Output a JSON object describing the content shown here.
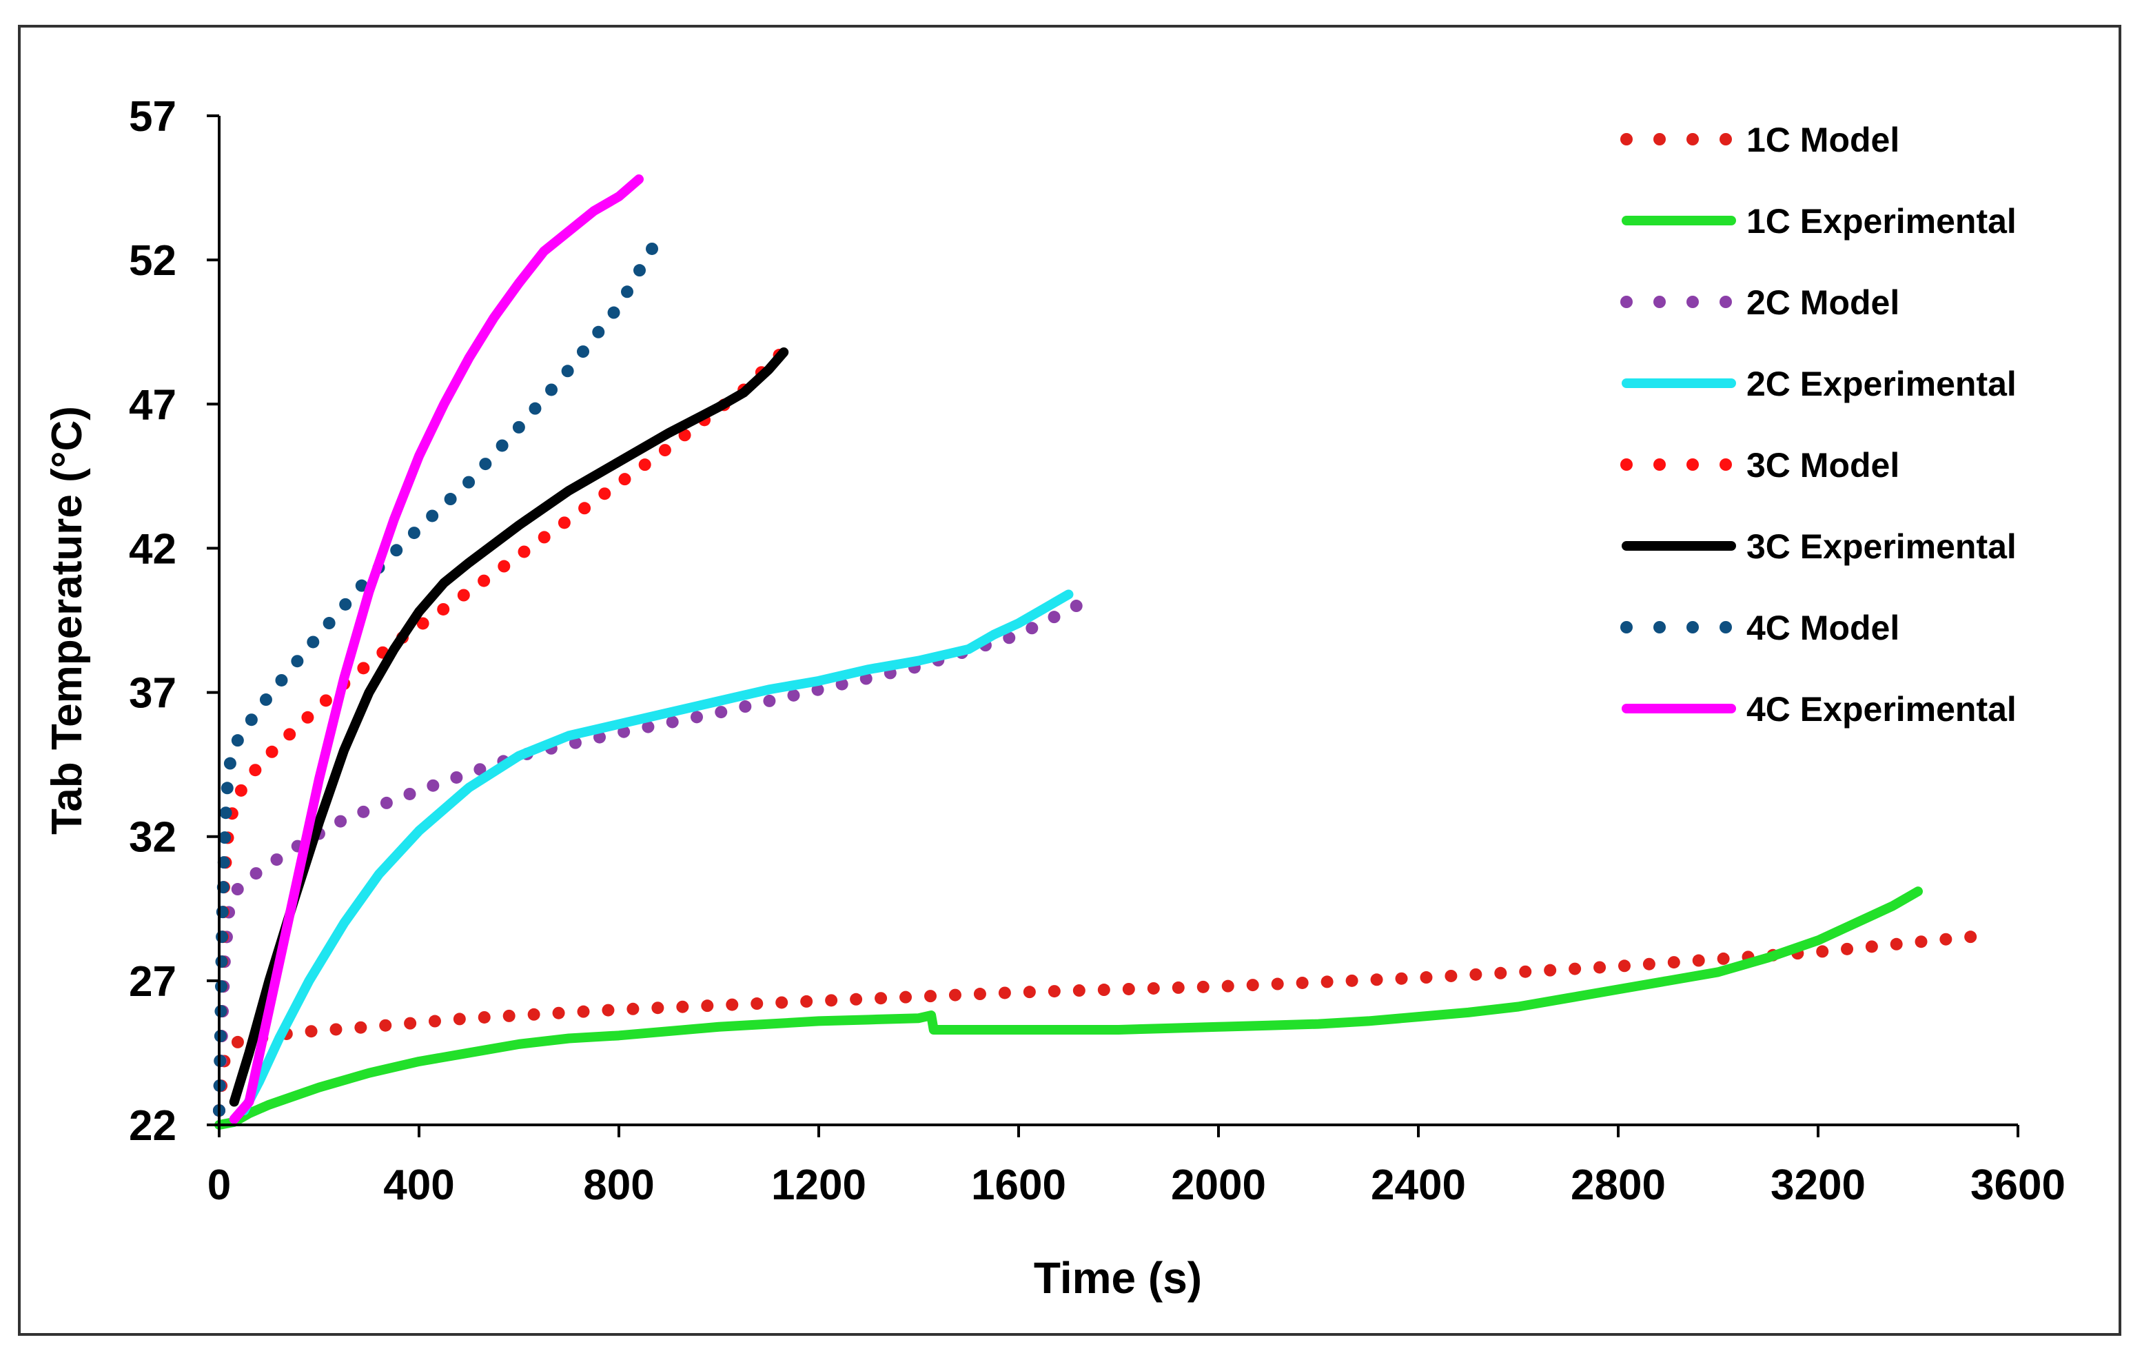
{
  "chart_data": {
    "type": "line",
    "title": "",
    "xlabel": "Time (s)",
    "ylabel": "Tab Temperature (°C)",
    "xlim": [
      0,
      3600
    ],
    "ylim": [
      22,
      57
    ],
    "xticks": [
      0,
      400,
      800,
      1200,
      1600,
      2000,
      2400,
      2800,
      3200,
      3600
    ],
    "yticks": [
      22,
      27,
      32,
      37,
      42,
      47,
      52,
      57
    ],
    "grid": false,
    "legend_position": "top-right",
    "series": [
      {
        "name": "1C Model",
        "style": "dotted",
        "color": "#e0201a",
        "x": [
          0,
          5,
          10,
          20,
          40,
          80,
          150,
          300,
          500,
          800,
          1200,
          1600,
          2000,
          2400,
          2800,
          3200,
          3550
        ],
        "y": [
          22.5,
          23.5,
          24.2,
          24.7,
          24.9,
          25.0,
          25.2,
          25.4,
          25.7,
          26.0,
          26.3,
          26.6,
          26.8,
          27.1,
          27.5,
          28.0,
          28.6
        ]
      },
      {
        "name": "1C Experimental",
        "style": "solid",
        "color": "#22e02a",
        "x": [
          0,
          30,
          60,
          100,
          200,
          300,
          400,
          500,
          600,
          700,
          800,
          900,
          1000,
          1100,
          1200,
          1300,
          1400,
          1425,
          1430,
          1500,
          1600,
          1700,
          1800,
          1900,
          2000,
          2100,
          2200,
          2300,
          2400,
          2500,
          2600,
          2700,
          2800,
          2900,
          3000,
          3100,
          3200,
          3250,
          3300,
          3350,
          3400
        ],
        "y": [
          22.0,
          22.1,
          22.4,
          22.7,
          23.3,
          23.8,
          24.2,
          24.5,
          24.8,
          25.0,
          25.1,
          25.25,
          25.4,
          25.5,
          25.6,
          25.65,
          25.7,
          25.8,
          25.3,
          25.3,
          25.3,
          25.3,
          25.3,
          25.35,
          25.4,
          25.45,
          25.5,
          25.6,
          25.75,
          25.9,
          26.1,
          26.4,
          26.7,
          27.0,
          27.3,
          27.8,
          28.4,
          28.8,
          29.2,
          29.6,
          30.1
        ]
      },
      {
        "name": "2C Model",
        "style": "dotted",
        "color": "#8b3fa8",
        "x": [
          0,
          5,
          10,
          20,
          40,
          80,
          150,
          250,
          400,
          600,
          800,
          1000,
          1200,
          1400,
          1600,
          1750
        ],
        "y": [
          22.5,
          25.0,
          27.5,
          29.5,
          30.3,
          30.8,
          31.6,
          32.6,
          33.6,
          34.8,
          35.6,
          36.3,
          37.1,
          37.9,
          39.0,
          40.3
        ]
      },
      {
        "name": "2C Experimental",
        "style": "solid",
        "color": "#1fe5f0",
        "x": [
          50,
          80,
          120,
          180,
          250,
          320,
          400,
          500,
          600,
          700,
          800,
          900,
          1000,
          1100,
          1200,
          1300,
          1400,
          1500,
          1550,
          1600,
          1650,
          1700
        ],
        "y": [
          22.5,
          23.5,
          25.0,
          27.0,
          29.0,
          30.7,
          32.2,
          33.7,
          34.8,
          35.5,
          35.9,
          36.3,
          36.7,
          37.1,
          37.4,
          37.8,
          38.1,
          38.5,
          39.0,
          39.4,
          39.9,
          40.4
        ]
      },
      {
        "name": "3C Model",
        "style": "dotted",
        "color": "#ff1010",
        "x": [
          0,
          5,
          10,
          20,
          40,
          80,
          150,
          250,
          350,
          500,
          700,
          900,
          1050,
          1150
        ],
        "y": [
          22.5,
          27.0,
          30.5,
          32.5,
          33.5,
          34.5,
          35.7,
          37.3,
          38.7,
          40.5,
          43.0,
          45.5,
          47.5,
          49.2
        ]
      },
      {
        "name": "3C Experimental",
        "style": "solid",
        "color": "#000000",
        "x": [
          30,
          60,
          100,
          150,
          200,
          250,
          300,
          350,
          400,
          450,
          500,
          600,
          700,
          800,
          900,
          1000,
          1050,
          1100,
          1130
        ],
        "y": [
          22.8,
          24.5,
          27.0,
          29.8,
          32.5,
          35.0,
          37.0,
          38.5,
          39.8,
          40.8,
          41.5,
          42.8,
          44.0,
          45.0,
          46.0,
          46.9,
          47.4,
          48.2,
          48.8
        ]
      },
      {
        "name": "4C Model",
        "style": "dotted",
        "color": "#0e4f80",
        "x": [
          0,
          3,
          6,
          10,
          15,
          25,
          50,
          100,
          200,
          300,
          400,
          500,
          600,
          700,
          800,
          880
        ],
        "y": [
          22.5,
          25.5,
          29.0,
          31.5,
          33.5,
          35.0,
          35.7,
          36.9,
          39.0,
          41.0,
          42.7,
          44.3,
          46.2,
          48.2,
          50.4,
          52.8
        ]
      },
      {
        "name": "4C Experimental",
        "style": "solid",
        "color": "#ff00ff",
        "x": [
          30,
          60,
          100,
          150,
          200,
          250,
          300,
          350,
          400,
          450,
          500,
          550,
          600,
          650,
          700,
          750,
          800,
          840
        ],
        "y": [
          22.2,
          22.8,
          26.0,
          30.0,
          34.0,
          37.5,
          40.5,
          43.0,
          45.2,
          47.0,
          48.6,
          50.0,
          51.2,
          52.3,
          53.0,
          53.7,
          54.2,
          54.8
        ]
      }
    ]
  }
}
